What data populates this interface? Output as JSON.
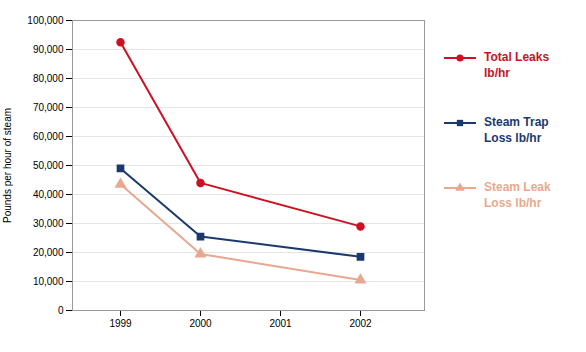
{
  "chart_data": {
    "type": "line",
    "ylabel": "Pounds per hour of steam",
    "x": [
      1999,
      2000,
      2002
    ],
    "xlim": [
      1998.4,
      2002.8
    ],
    "xticks": [
      1999,
      2000,
      2001,
      2002
    ],
    "ylim": [
      0,
      100000
    ],
    "yticks": [
      0,
      {
        "value": 10000,
        "label": "10,000"
      },
      {
        "value": 20000,
        "label": "20,000"
      },
      {
        "value": 30000,
        "label": "30,000"
      },
      {
        "value": 40000,
        "label": "40,000"
      },
      {
        "value": 50000,
        "label": "50,000"
      },
      {
        "value": 60000,
        "label": "60,000"
      },
      {
        "value": 70000,
        "label": "70,000"
      },
      {
        "value": 80000,
        "label": "80,000"
      },
      {
        "value": 90000,
        "label": "90,000"
      },
      {
        "value": 100000,
        "label": "100,000"
      }
    ],
    "grid": true,
    "legend": "right",
    "series": [
      {
        "name": "Total Leaks\nlb/hr",
        "color": "#CC1122",
        "marker": "circle",
        "values": [
          92500,
          44000,
          29000
        ]
      },
      {
        "name": "Steam Trap\nLoss lb/hr",
        "color": "#1A3A6E",
        "marker": "square",
        "values": [
          49000,
          25500,
          18500
        ]
      },
      {
        "name": "Steam Leak\nLoss lb/hr",
        "color": "#E8A890",
        "marker": "triangle",
        "values": [
          43500,
          19500,
          10500
        ]
      }
    ]
  }
}
